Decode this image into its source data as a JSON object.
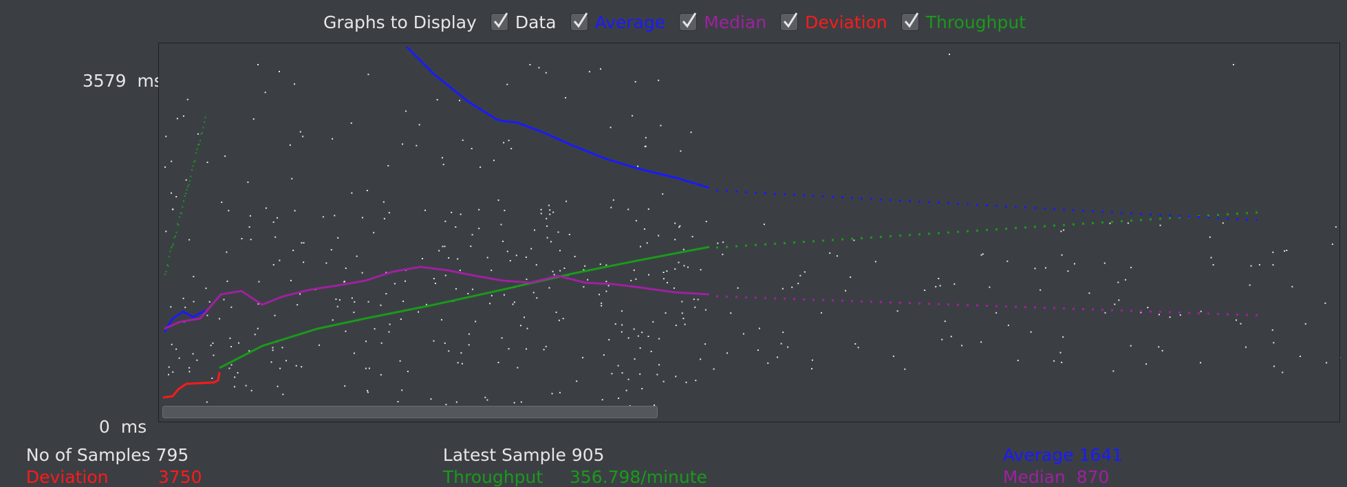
{
  "legend": {
    "title": "Graphs to Display",
    "items": [
      {
        "label": "Data",
        "color": "#e6e6e6",
        "checked": true
      },
      {
        "label": "Average",
        "color": "#1a1aff",
        "checked": true
      },
      {
        "label": "Median",
        "color": "#a020a0",
        "checked": true
      },
      {
        "label": "Deviation",
        "color": "#ff1a1a",
        "checked": true
      },
      {
        "label": "Throughput",
        "color": "#1a9a1a",
        "checked": true
      }
    ]
  },
  "axis": {
    "y_max_value": "3579",
    "y_max_unit": "ms",
    "y_min_value": "0",
    "y_min_unit": "ms"
  },
  "stats": {
    "samples_label": "No of Samples",
    "samples_value": "795",
    "deviation_label": "Deviation",
    "deviation_value": "3750",
    "latest_label": "Latest Sample",
    "latest_value": "905",
    "throughput_label": "Throughput",
    "throughput_value": "356.798/minute",
    "average_label": "Average",
    "average_value": "1641",
    "median_label": "Median",
    "median_value": "870"
  },
  "colors": {
    "data": "#e6e6e6",
    "average": "#1a1aff",
    "median": "#a020a0",
    "deviation": "#ff1a1a",
    "throughput": "#1a9a1a"
  }
}
